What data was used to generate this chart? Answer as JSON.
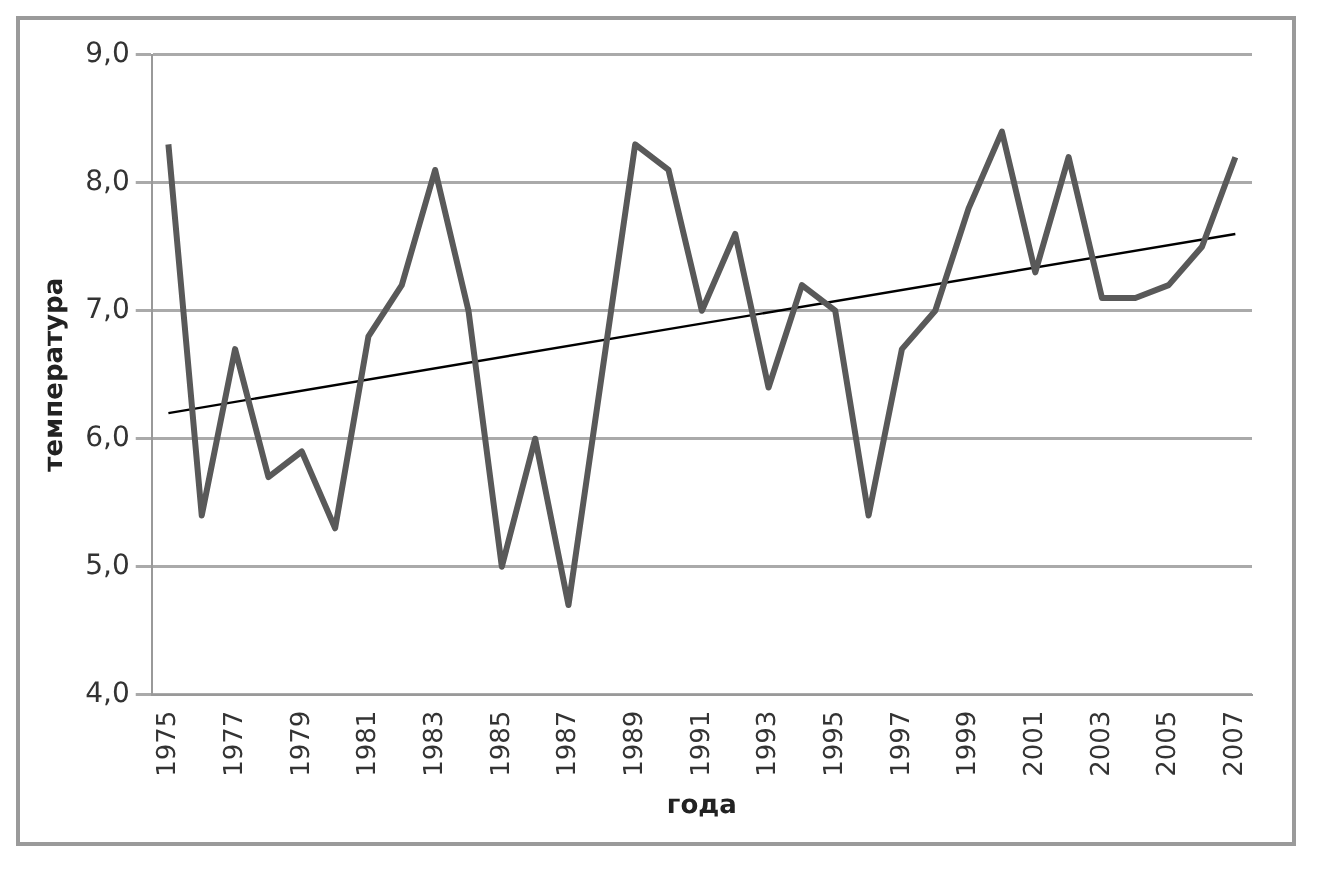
{
  "chart_data": {
    "type": "line",
    "xlabel": "года",
    "ylabel": "температура",
    "x": [
      1975,
      1976,
      1977,
      1978,
      1979,
      1980,
      1981,
      1982,
      1983,
      1984,
      1985,
      1986,
      1987,
      1988,
      1989,
      1990,
      1991,
      1992,
      1993,
      1994,
      1995,
      1996,
      1997,
      1998,
      1999,
      2000,
      2001,
      2002,
      2003,
      2004,
      2005,
      2006,
      2007
    ],
    "series": [
      {
        "color": "#595959",
        "values": [
          8.3,
          5.4,
          6.7,
          5.7,
          5.9,
          5.3,
          6.8,
          7.2,
          8.1,
          7.0,
          5.0,
          6.0,
          4.7,
          6.5,
          8.3,
          8.1,
          7.0,
          7.6,
          6.4,
          7.2,
          7.0,
          5.4,
          6.7,
          7.0,
          7.8,
          8.4,
          7.3,
          8.2,
          7.1,
          7.1,
          7.2,
          7.5,
          8.2
        ]
      },
      {
        "type": "line",
        "color": "#000000",
        "x": [
          1975,
          2007
        ],
        "values": [
          6.2,
          7.6
        ]
      }
    ],
    "xlim": [
      1974.5,
      2007.5
    ],
    "xticks": [
      1975,
      1977,
      1979,
      1981,
      1983,
      1985,
      1987,
      1989,
      1991,
      1993,
      1995,
      1997,
      1999,
      2001,
      2003,
      2005,
      2007
    ],
    "ylim": [
      4,
      9
    ],
    "yticks": [
      {
        "value": 4,
        "label": "4,0"
      },
      {
        "value": 5,
        "label": "5,0"
      },
      {
        "value": 6,
        "label": "6,0"
      },
      {
        "value": 7,
        "label": "7,0"
      },
      {
        "value": 8,
        "label": "8,0"
      },
      {
        "value": 9,
        "label": "9,0"
      }
    ],
    "grid": "y",
    "legend": false,
    "marker": "none",
    "line_style": "solid"
  }
}
